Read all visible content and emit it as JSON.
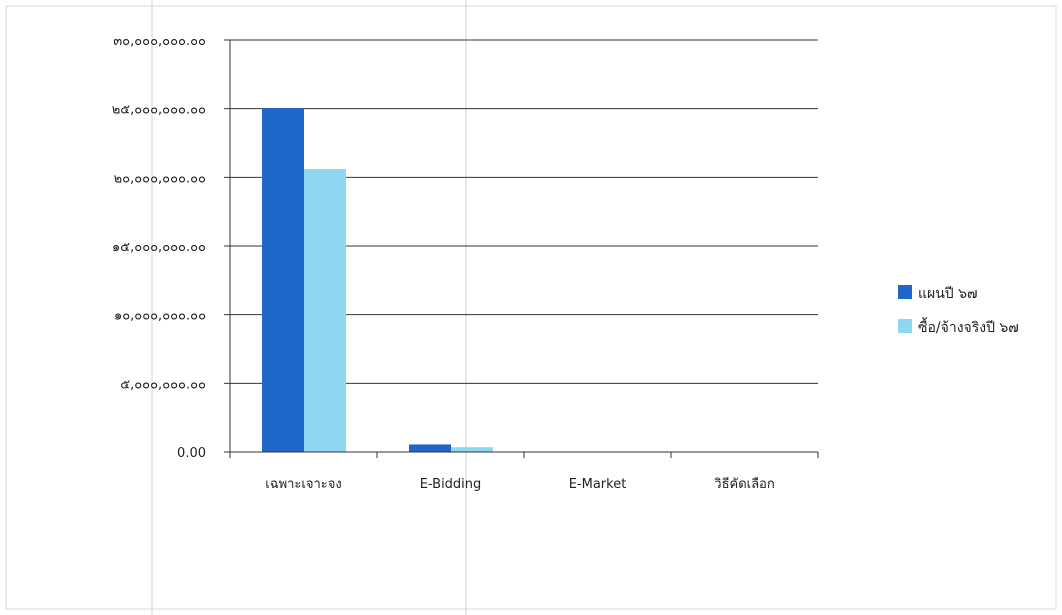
{
  "chart_data": {
    "type": "bar",
    "title": "",
    "xlabel": "",
    "ylabel": "",
    "categories": [
      "เฉพาะเจาะจง",
      "E-Bidding",
      "E-Market",
      "วิธีคัดเลือก"
    ],
    "series": [
      {
        "name": "แผนปี ๖๗",
        "color": "#1f66c9",
        "values": [
          25050000,
          550000,
          0,
          0
        ]
      },
      {
        "name": "ซื้อ/จ้างจริงปี ๖๗",
        "color": "#8fd6f0",
        "values": [
          20600000,
          350000,
          0,
          0
        ]
      }
    ],
    "ylim": [
      0,
      30000000
    ],
    "yticks": [
      0,
      5000000,
      10000000,
      15000000,
      20000000,
      25000000,
      30000000
    ],
    "ytick_labels": [
      "0.00",
      "๕,๐๐๐,๐๐๐.๐๐",
      "๑๐,๐๐๐,๐๐๐.๐๐",
      "๑๕,๐๐๐,๐๐๐.๐๐",
      "๒๐,๐๐๐,๐๐๐.๐๐",
      "๒๕,๐๐๐,๐๐๐.๐๐",
      "๓๐,๐๐๐,๐๐๐.๐๐"
    ],
    "grid": true,
    "legend_position": "right"
  }
}
